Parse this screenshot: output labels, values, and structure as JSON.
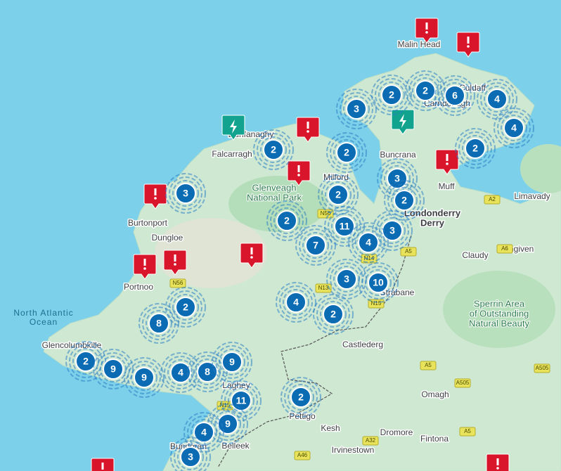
{
  "map": {
    "clusters": [
      3,
      2,
      2,
      6,
      4,
      4,
      2,
      2,
      2,
      3,
      3,
      2,
      2,
      2,
      11,
      3,
      7,
      4,
      3,
      10,
      4,
      2,
      2,
      8,
      2,
      9,
      9,
      4,
      8,
      9,
      11,
      2,
      9,
      4,
      3
    ],
    "places": [
      "Malin Head",
      "Culdaff",
      "Carndonagh",
      "Dunfanaghy",
      "Falcarragh",
      "Buncrana",
      "Milford",
      "Muff",
      "Limavady",
      "Burtonport",
      "Dungloe",
      "Claudy",
      "Dungiven",
      "Portnoo",
      "Strabane",
      "Castlederg",
      "Glencolumbkille",
      "Laghey",
      "Omagh",
      "Pettigo",
      "Kesh",
      "Dromore",
      "Fintona",
      "Irvinestown",
      "Belleek",
      "Bundoran"
    ],
    "regions": [
      [
        "Glenveagh",
        "National Park"
      ],
      [
        "Londonderry",
        "Derry"
      ],
      [
        "Sperrin Area",
        "of Outstanding",
        "Natural Beauty"
      ]
    ],
    "ocean": [
      "North Atlantic",
      "Ocean"
    ],
    "roads": [
      "A2",
      "A6",
      "A5",
      "A5",
      "A5",
      "A505",
      "A505",
      "N56",
      "N56",
      "N13",
      "N15",
      "N14",
      "A32",
      "A46",
      "N15"
    ]
  }
}
